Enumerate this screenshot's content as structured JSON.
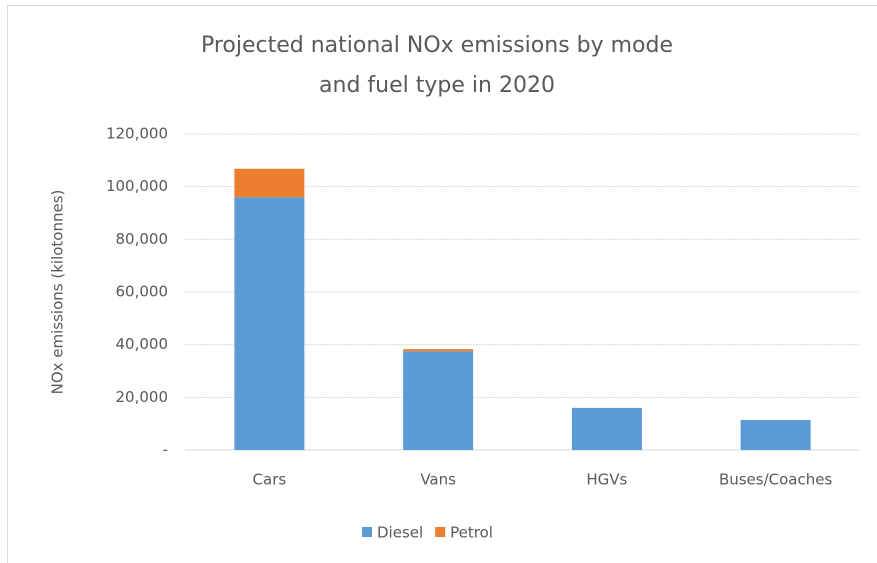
{
  "chart_data": {
    "type": "stacked_bar",
    "title": "Projected national NOx emissions by mode and fuel type in 2020",
    "y_label": "NOx emissions (kilotonnes)",
    "categories": [
      "Cars",
      "Vans",
      "HGVs",
      "Buses/Coaches"
    ],
    "series": [
      {
        "name": "Diesel",
        "color": "#5b9bd5",
        "values": [
          96000,
          37500,
          16000,
          11400
        ]
      },
      {
        "name": "Petrol",
        "color": "#ed7d31",
        "values": [
          10800,
          800,
          0,
          0
        ]
      }
    ],
    "ylim": [
      0,
      120000
    ],
    "yticks": [
      {
        "value": 0,
        "label": "-"
      },
      {
        "value": 20000,
        "label": "20,000"
      },
      {
        "value": 40000,
        "label": "40,000"
      },
      {
        "value": 60000,
        "label": "60,000"
      },
      {
        "value": 80000,
        "label": "80,000"
      },
      {
        "value": 100000,
        "label": "100,000"
      },
      {
        "value": 120000,
        "label": "120,000"
      }
    ],
    "grid": true,
    "legend": "bottom"
  }
}
